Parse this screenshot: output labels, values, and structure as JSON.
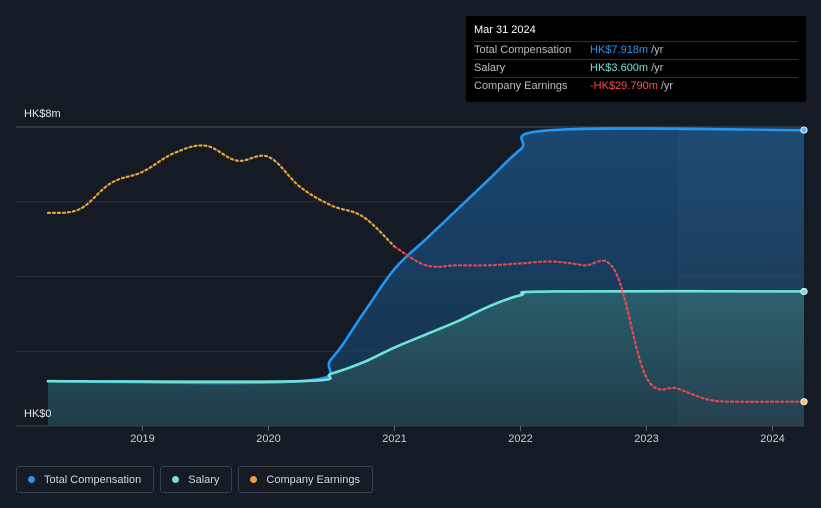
{
  "tooltip": {
    "date": "Mar 31 2024",
    "rows": [
      {
        "label": "Total Compensation",
        "value": "HK$7.918m",
        "unit": "/yr",
        "color": "#2196f3"
      },
      {
        "label": "Salary",
        "value": "HK$3.600m",
        "unit": "/yr",
        "color": "#6fe3d6"
      },
      {
        "label": "Company Earnings",
        "value": "-HK$29.790m",
        "unit": "/yr",
        "color": "#ff4d4f"
      }
    ]
  },
  "legend": [
    {
      "label": "Total Compensation",
      "color": "#2196f3"
    },
    {
      "label": "Salary",
      "color": "#6fe3d6"
    },
    {
      "label": "Company Earnings",
      "color": "#e8a33d"
    }
  ],
  "chart_data": {
    "type": "area",
    "y_axis": {
      "top_label": "HK$8m",
      "bottom_label": "HK$0",
      "ylim": [
        0,
        8
      ]
    },
    "x_axis": {
      "ticks": [
        2019,
        2020,
        2021,
        2022,
        2023,
        2024
      ],
      "xlim": [
        2018.25,
        2024.25
      ]
    },
    "series": [
      {
        "name": "Total Compensation",
        "color": "#2196f3",
        "style": "area",
        "points": [
          [
            2018.25,
            1.2
          ],
          [
            2020.25,
            1.2
          ],
          [
            2020.5,
            1.8
          ],
          [
            2020.75,
            3.0
          ],
          [
            2021.0,
            4.2
          ],
          [
            2021.25,
            5.0
          ],
          [
            2021.5,
            5.8
          ],
          [
            2021.75,
            6.6
          ],
          [
            2022.0,
            7.4
          ],
          [
            2022.25,
            7.918
          ],
          [
            2024.25,
            7.918
          ]
        ]
      },
      {
        "name": "Salary",
        "color": "#6fe3d6",
        "style": "area",
        "points": [
          [
            2018.25,
            1.2
          ],
          [
            2020.25,
            1.2
          ],
          [
            2020.5,
            1.4
          ],
          [
            2020.75,
            1.7
          ],
          [
            2021.0,
            2.1
          ],
          [
            2021.25,
            2.45
          ],
          [
            2021.5,
            2.8
          ],
          [
            2021.75,
            3.2
          ],
          [
            2022.0,
            3.5
          ],
          [
            2022.25,
            3.6
          ],
          [
            2024.25,
            3.6
          ]
        ]
      },
      {
        "name": "Company Earnings",
        "color": "#e8a33d",
        "style": "dotted",
        "scale": "relative",
        "points": [
          [
            2018.25,
            5.7
          ],
          [
            2018.5,
            5.8
          ],
          [
            2018.75,
            6.5
          ],
          [
            2019.0,
            6.8
          ],
          [
            2019.25,
            7.3
          ],
          [
            2019.5,
            7.5
          ],
          [
            2019.75,
            7.1
          ],
          [
            2020.0,
            7.2
          ],
          [
            2020.25,
            6.4
          ],
          [
            2020.5,
            5.9
          ],
          [
            2020.75,
            5.6
          ],
          [
            2021.0,
            4.8
          ],
          [
            2021.25,
            4.3
          ],
          [
            2021.5,
            4.3
          ],
          [
            2021.75,
            4.3
          ],
          [
            2022.0,
            4.35
          ],
          [
            2022.25,
            4.4
          ],
          [
            2022.5,
            4.3
          ],
          [
            2022.75,
            4.15
          ],
          [
            2023.0,
            1.3
          ],
          [
            2023.25,
            1.0
          ],
          [
            2023.5,
            0.7
          ],
          [
            2023.75,
            0.65
          ],
          [
            2024.0,
            0.65
          ],
          [
            2024.25,
            0.65
          ]
        ]
      }
    ],
    "forecast_shade_start": 2023.25
  }
}
